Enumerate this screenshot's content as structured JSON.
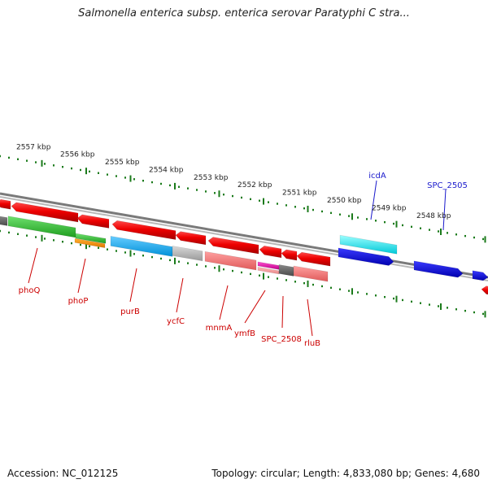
{
  "title": "Salmonella enterica subsp. enterica serovar Paratyphi C stra...",
  "footer": {
    "accession": "Accession: NC_012125",
    "summary": "Topology: circular; Length: 4,833,080 bp; Genes: 4,680"
  },
  "colors": {
    "background": "#ffffff",
    "tick": "#1a7a1a",
    "backbone": "#888888",
    "label_minus": "#cc0000",
    "label_plus": "#1a1acc"
  },
  "scale_labels": [
    "2557 kbp",
    "2556 kbp",
    "2555 kbp",
    "2554 kbp",
    "2553 kbp",
    "2552 kbp",
    "2551 kbp",
    "2550 kbp",
    "2549 kbp",
    "2548 kbp"
  ],
  "gene_labels": [
    {
      "text": "icdA",
      "strand": "plus"
    },
    {
      "text": "SPC_2505",
      "strand": "plus"
    },
    {
      "text": "phoQ",
      "strand": "minus"
    },
    {
      "text": "phoP",
      "strand": "minus"
    },
    {
      "text": "purB",
      "strand": "minus"
    },
    {
      "text": "ycfC",
      "strand": "minus"
    },
    {
      "text": "mnmA",
      "strand": "minus"
    },
    {
      "text": "ymfB",
      "strand": "minus"
    },
    {
      "text": "SPC_2508",
      "strand": "minus"
    },
    {
      "text": "rluB",
      "strand": "minus"
    }
  ]
}
